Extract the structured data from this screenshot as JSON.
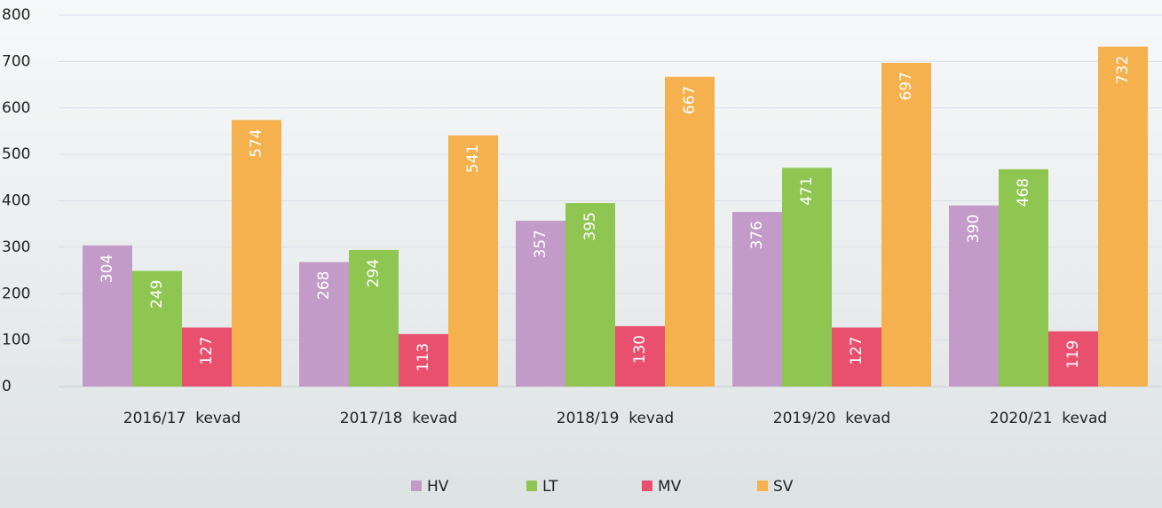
{
  "chart_data": {
    "type": "bar",
    "categories": [
      "2016/17  kevad",
      "2017/18  kevad",
      "2018/19  kevad",
      "2019/20  kevad",
      "2020/21  kevad"
    ],
    "series": [
      {
        "name": "HV",
        "color": "#c39bc8",
        "values": [
          304,
          268,
          357,
          376,
          390
        ]
      },
      {
        "name": "LT",
        "color": "#8fc652",
        "values": [
          249,
          294,
          395,
          471,
          468
        ]
      },
      {
        "name": "MV",
        "color": "#e8506e",
        "values": [
          127,
          113,
          130,
          127,
          119
        ]
      },
      {
        "name": "SV",
        "color": "#f4b14e",
        "values": [
          574,
          541,
          667,
          697,
          732
        ]
      }
    ],
    "ylim": [
      0,
      800
    ],
    "yticks": [
      0,
      100,
      200,
      300,
      400,
      500,
      600,
      700,
      800
    ],
    "grid": true
  }
}
